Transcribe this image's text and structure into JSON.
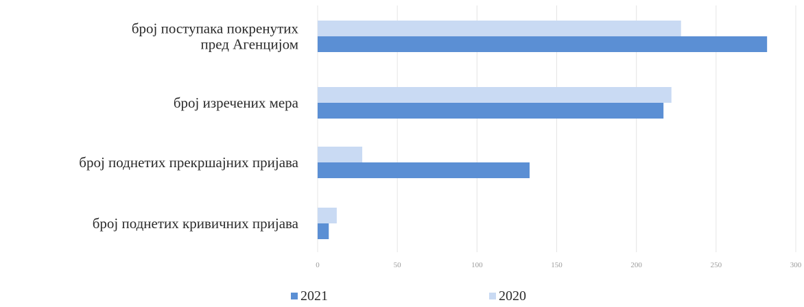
{
  "chart_data": {
    "type": "bar",
    "orientation": "horizontal",
    "categories": [
      [
        "број поступака покренутих",
        "пред Агенцијом"
      ],
      [
        "број изречених мера"
      ],
      [
        "број поднетих прекршајних пријава"
      ],
      [
        "број поднетих кривичних пријава"
      ]
    ],
    "series": [
      {
        "name": "2021",
        "color": "#5b8fd4",
        "values": [
          282,
          217,
          133,
          7
        ]
      },
      {
        "name": "2020",
        "color": "#c9daf3",
        "values": [
          228,
          222,
          28,
          12
        ]
      }
    ],
    "xlim": [
      0,
      300
    ],
    "xticks": [
      "0",
      "50",
      "100",
      "150",
      "200",
      "250",
      "300"
    ],
    "grid": true,
    "legend_position": "bottom"
  }
}
